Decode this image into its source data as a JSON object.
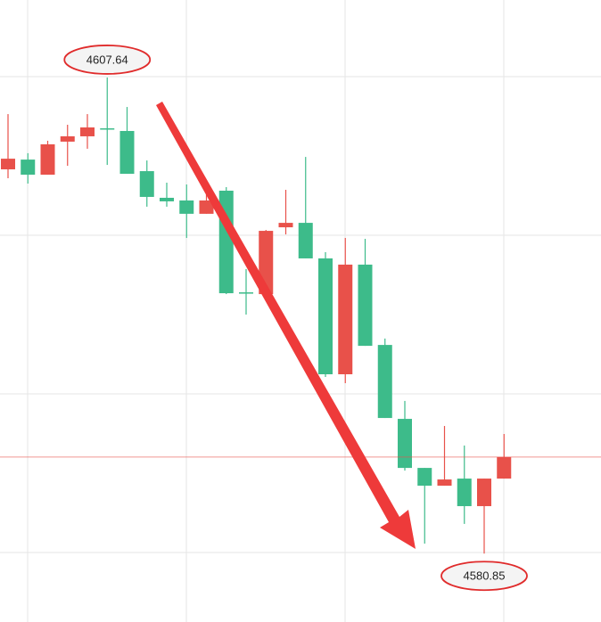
{
  "chart_data": {
    "type": "candlestick",
    "open": [
      4602.47,
      4603.02,
      4602.17,
      4604.03,
      4604.33,
      4604.78,
      4604.63,
      4602.37,
      4600.87,
      4600.72,
      4599.97,
      4601.27,
      4595.55,
      4595.45,
      4599.21,
      4599.46,
      4597.46,
      4590.94,
      4597.11,
      4592.59,
      4588.43,
      4585.67,
      4584.67,
      4585.07,
      4583.52,
      4585.07
    ],
    "high": [
      4605.58,
      4603.38,
      4604.08,
      4604.98,
      4605.58,
      4607.64,
      4605.98,
      4602.97,
      4601.72,
      4601.62,
      4601.07,
      4601.47,
      4596.86,
      4599.06,
      4601.32,
      4603.17,
      4597.81,
      4598.61,
      4598.56,
      4592.95,
      4589.44,
      4585.67,
      4588.03,
      4586.93,
      4585.07,
      4587.58
    ],
    "low": [
      4601.97,
      4601.67,
      4602.17,
      4602.67,
      4603.63,
      4602.72,
      4602.22,
      4600.37,
      4600.37,
      4598.61,
      4599.97,
      4595.45,
      4594.3,
      4595.45,
      4598.81,
      4597.46,
      4590.79,
      4590.44,
      4592.54,
      4588.48,
      4585.52,
      4581.41,
      4584.67,
      4582.52,
      4580.85,
      4585.07
    ],
    "close": [
      4603.07,
      4602.17,
      4603.88,
      4604.33,
      4604.83,
      4604.73,
      4602.22,
      4600.92,
      4600.67,
      4599.97,
      4600.72,
      4595.5,
      4595.5,
      4599.01,
      4599.46,
      4597.46,
      4590.94,
      4597.11,
      4592.54,
      4588.48,
      4585.67,
      4584.67,
      4585.02,
      4583.52,
      4585.07,
      4586.28
    ],
    "up_color": "#e8514a",
    "down_color": "#3dbb8a",
    "ylim": [
      4577,
      4612
    ]
  }
}
